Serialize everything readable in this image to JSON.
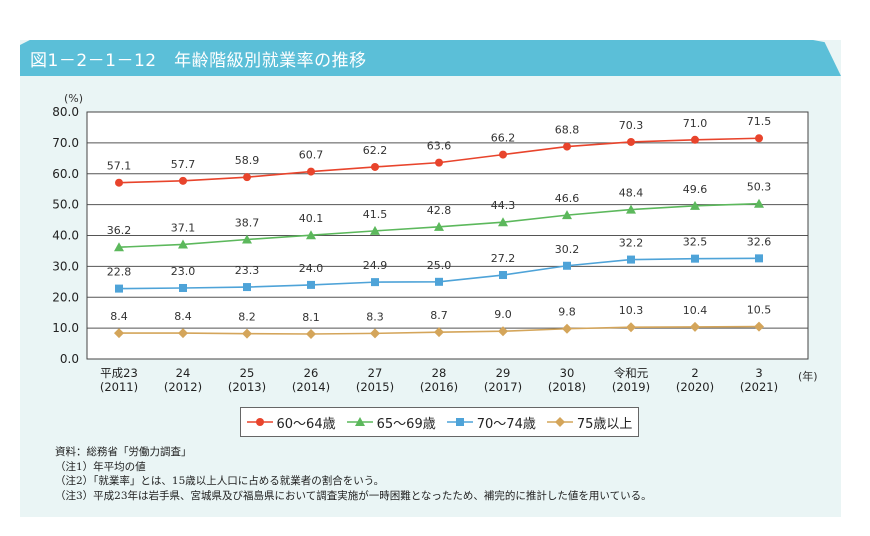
{
  "figure": {
    "title": "図1－2－1－12　年齢階級別就業率の推移"
  },
  "chart_data": {
    "type": "line",
    "title": "年齢階級別就業率の推移",
    "ylabel": "(%)",
    "xlabel": "(年)",
    "ylim": [
      0,
      80
    ],
    "yticks": [
      0,
      10,
      20,
      30,
      40,
      50,
      60,
      70,
      80
    ],
    "ytick_labels": [
      "0.0",
      "10.0",
      "20.0",
      "30.0",
      "40.0",
      "50.0",
      "60.0",
      "70.0",
      "80.0"
    ],
    "grid": true,
    "legend_position": "bottom-center",
    "categories": [
      {
        "era": "平成23",
        "year": "(2011)"
      },
      {
        "era": "24",
        "year": "(2012)"
      },
      {
        "era": "25",
        "year": "(2013)"
      },
      {
        "era": "26",
        "year": "(2014)"
      },
      {
        "era": "27",
        "year": "(2015)"
      },
      {
        "era": "28",
        "year": "(2016)"
      },
      {
        "era": "29",
        "year": "(2017)"
      },
      {
        "era": "30",
        "year": "(2018)"
      },
      {
        "era": "令和元",
        "year": "(2019)"
      },
      {
        "era": "2",
        "year": "(2020)"
      },
      {
        "era": "3",
        "year": "(2021)"
      }
    ],
    "series": [
      {
        "name": "60～64歳",
        "color": "#e8442c",
        "marker": "circle",
        "values": [
          57.1,
          57.7,
          58.9,
          60.7,
          62.2,
          63.6,
          66.2,
          68.8,
          70.3,
          71.0,
          71.5
        ]
      },
      {
        "name": "65～69歳",
        "color": "#5cb85c",
        "marker": "triangle",
        "values": [
          36.2,
          37.1,
          38.7,
          40.1,
          41.5,
          42.8,
          44.3,
          46.6,
          48.4,
          49.6,
          50.3
        ]
      },
      {
        "name": "70～74歳",
        "color": "#4ea3d8",
        "marker": "square",
        "values": [
          22.8,
          23.0,
          23.3,
          24.0,
          24.9,
          25.0,
          27.2,
          30.2,
          32.2,
          32.5,
          32.6
        ]
      },
      {
        "name": "75歳以上",
        "color": "#d4a55a",
        "marker": "diamond",
        "values": [
          8.4,
          8.4,
          8.2,
          8.1,
          8.3,
          8.7,
          9.0,
          9.8,
          10.3,
          10.4,
          10.5
        ]
      }
    ]
  },
  "notes": [
    "資料：総務省「労働力調査」",
    "（注1）年平均の値",
    "（注2）「就業率」とは、15歳以上人口に占める就業者の割合をいう。",
    "（注3）平成23年は岩手県、宮城県及び福島県において調査実施が一時困難となったため、補完的に推計した値を用いている。"
  ]
}
